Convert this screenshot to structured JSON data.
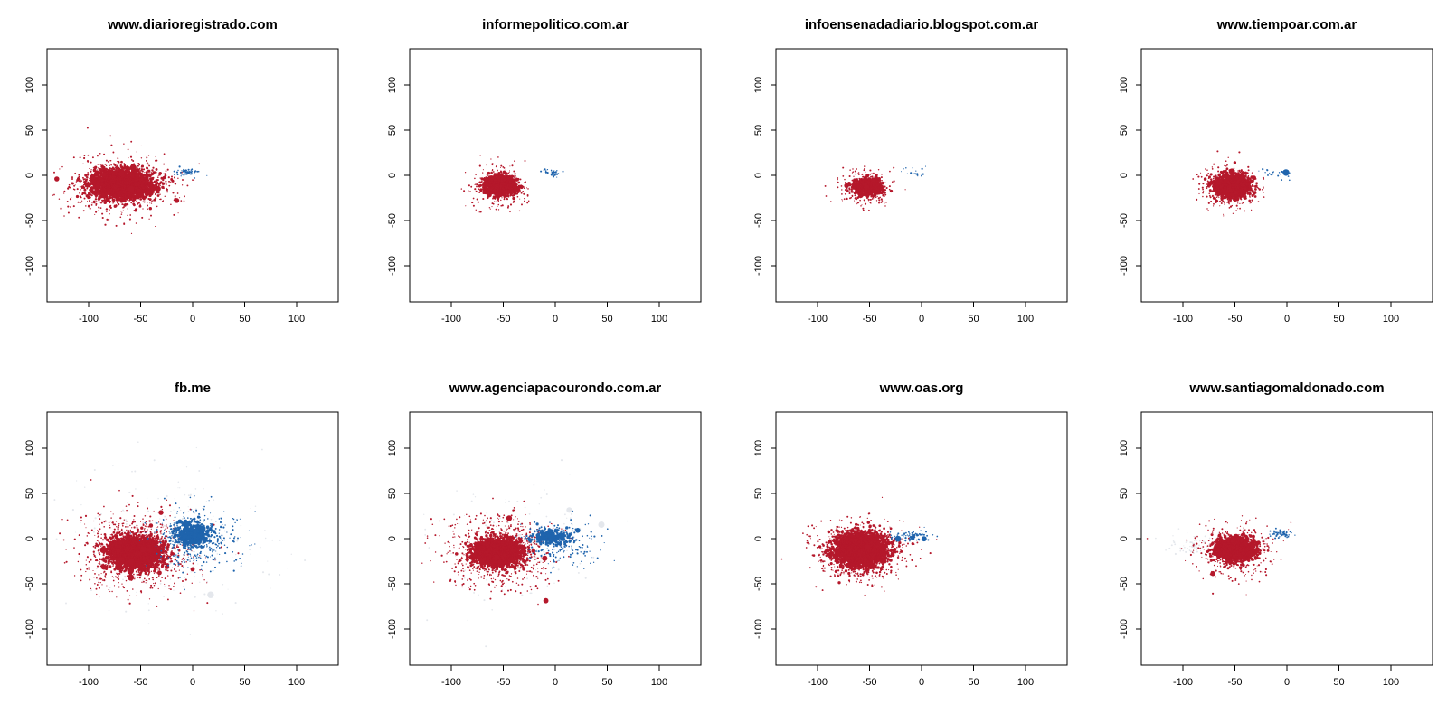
{
  "colors": {
    "red": "#b5182b",
    "blue": "#1f64ad",
    "light_gray": "#e4e7ec",
    "axis": "#000000"
  },
  "chart_data": [
    {
      "type": "scatter",
      "title": "www.diarioregistrado.com",
      "xlim": [
        -140,
        140
      ],
      "ylim": [
        -140,
        140
      ],
      "xticks": [
        -100,
        -50,
        0,
        50,
        100
      ],
      "yticks": [
        -100,
        -50,
        0,
        50,
        100
      ],
      "grid": false,
      "series": [
        {
          "color": "red",
          "center": [
            -68,
            -10
          ],
          "spread": [
            14,
            8
          ],
          "count": 2600,
          "core": true
        },
        {
          "color": "red",
          "center": [
            -70,
            -12
          ],
          "spread": [
            26,
            16
          ],
          "count": 700
        },
        {
          "color": "blue",
          "center": [
            -5,
            3
          ],
          "spread": [
            6,
            2
          ],
          "count": 60
        }
      ]
    },
    {
      "type": "scatter",
      "title": "informepolitico.com.ar",
      "xlim": [
        -140,
        140
      ],
      "ylim": [
        -140,
        140
      ],
      "xticks": [
        -100,
        -50,
        0,
        50,
        100
      ],
      "yticks": [
        -100,
        -50,
        0,
        50,
        100
      ],
      "grid": false,
      "series": [
        {
          "color": "red",
          "center": [
            -52,
            -12
          ],
          "spread": [
            7,
            5
          ],
          "count": 1500,
          "core": true
        },
        {
          "color": "red",
          "center": [
            -55,
            -12
          ],
          "spread": [
            14,
            11
          ],
          "count": 300
        },
        {
          "color": "blue",
          "center": [
            -3,
            3
          ],
          "spread": [
            4,
            2
          ],
          "count": 40
        }
      ]
    },
    {
      "type": "scatter",
      "title": "infoensenadadiario.blogspot.com.ar",
      "xlim": [
        -140,
        140
      ],
      "ylim": [
        -140,
        140
      ],
      "xticks": [
        -100,
        -50,
        0,
        50,
        100
      ],
      "yticks": [
        -100,
        -50,
        0,
        50,
        100
      ],
      "grid": false,
      "series": [
        {
          "color": "red",
          "center": [
            -52,
            -12
          ],
          "spread": [
            6,
            4
          ],
          "count": 1200,
          "core": true
        },
        {
          "color": "red",
          "center": [
            -55,
            -14
          ],
          "spread": [
            12,
            10
          ],
          "count": 250
        },
        {
          "color": "blue",
          "center": [
            -7,
            3
          ],
          "spread": [
            6,
            3
          ],
          "count": 20
        }
      ]
    },
    {
      "type": "scatter",
      "title": "www.tiempoar.com.ar",
      "xlim": [
        -140,
        140
      ],
      "ylim": [
        -140,
        140
      ],
      "xticks": [
        -100,
        -50,
        0,
        50,
        100
      ],
      "yticks": [
        -100,
        -50,
        0,
        50,
        100
      ],
      "grid": false,
      "series": [
        {
          "color": "red",
          "center": [
            -52,
            -12
          ],
          "spread": [
            8,
            6
          ],
          "count": 1500,
          "core": true
        },
        {
          "color": "red",
          "center": [
            -55,
            -14
          ],
          "spread": [
            14,
            12
          ],
          "count": 350
        },
        {
          "color": "blue",
          "center": [
            -12,
            2
          ],
          "spread": [
            8,
            3
          ],
          "count": 25
        }
      ]
    },
    {
      "type": "scatter",
      "title": "fb.me",
      "xlim": [
        -140,
        140
      ],
      "ylim": [
        -140,
        140
      ],
      "xticks": [
        -100,
        -50,
        0,
        50,
        100
      ],
      "yticks": [
        -100,
        -50,
        0,
        50,
        100
      ],
      "grid": false,
      "series": [
        {
          "color": "light_gray",
          "center": [
            -30,
            0
          ],
          "spread": [
            55,
            40
          ],
          "count": 200
        },
        {
          "color": "red",
          "center": [
            -55,
            -15
          ],
          "spread": [
            12,
            8
          ],
          "count": 2800,
          "core": true
        },
        {
          "color": "red",
          "center": [
            -55,
            -15
          ],
          "spread": [
            26,
            22
          ],
          "count": 900
        },
        {
          "color": "blue",
          "center": [
            0,
            5
          ],
          "spread": [
            8,
            6
          ],
          "count": 500,
          "core": true
        },
        {
          "color": "blue",
          "center": [
            5,
            0
          ],
          "spread": [
            22,
            16
          ],
          "count": 400
        }
      ]
    },
    {
      "type": "scatter",
      "title": "www.agenciapacourondo.com.ar",
      "xlim": [
        -140,
        140
      ],
      "ylim": [
        -140,
        140
      ],
      "xticks": [
        -100,
        -50,
        0,
        50,
        100
      ],
      "yticks": [
        -100,
        -50,
        0,
        50,
        100
      ],
      "grid": false,
      "series": [
        {
          "color": "light_gray",
          "center": [
            -35,
            -5
          ],
          "spread": [
            45,
            35
          ],
          "count": 120
        },
        {
          "color": "red",
          "center": [
            -55,
            -15
          ],
          "spread": [
            11,
            7
          ],
          "count": 2500,
          "core": true
        },
        {
          "color": "red",
          "center": [
            -55,
            -15
          ],
          "spread": [
            24,
            20
          ],
          "count": 800
        },
        {
          "color": "blue",
          "center": [
            -5,
            2
          ],
          "spread": [
            9,
            4
          ],
          "count": 260,
          "core": true
        },
        {
          "color": "blue",
          "center": [
            5,
            -5
          ],
          "spread": [
            18,
            12
          ],
          "count": 200
        }
      ]
    },
    {
      "type": "scatter",
      "title": "www.oas.org",
      "xlim": [
        -140,
        140
      ],
      "ylim": [
        -140,
        140
      ],
      "xticks": [
        -100,
        -50,
        0,
        50,
        100
      ],
      "yticks": [
        -100,
        -50,
        0,
        50,
        100
      ],
      "grid": false,
      "series": [
        {
          "color": "red",
          "center": [
            -58,
            -12
          ],
          "spread": [
            12,
            9
          ],
          "count": 3000,
          "core": true
        },
        {
          "color": "red",
          "center": [
            -60,
            -14
          ],
          "spread": [
            22,
            16
          ],
          "count": 700
        },
        {
          "color": "blue",
          "center": [
            -8,
            3
          ],
          "spread": [
            10,
            3
          ],
          "count": 80
        }
      ]
    },
    {
      "type": "scatter",
      "title": "www.santiagomaldonado.com",
      "xlim": [
        -140,
        140
      ],
      "ylim": [
        -140,
        140
      ],
      "xticks": [
        -100,
        -50,
        0,
        50,
        100
      ],
      "yticks": [
        -100,
        -50,
        0,
        50,
        100
      ],
      "grid": false,
      "series": [
        {
          "color": "light_gray",
          "center": [
            -85,
            -8
          ],
          "spread": [
            15,
            7
          ],
          "count": 80
        },
        {
          "color": "red",
          "center": [
            -50,
            -12
          ],
          "spread": [
            9,
            6
          ],
          "count": 1800,
          "core": true
        },
        {
          "color": "red",
          "center": [
            -52,
            -14
          ],
          "spread": [
            18,
            14
          ],
          "count": 450
        },
        {
          "color": "blue",
          "center": [
            -5,
            5
          ],
          "spread": [
            5,
            2
          ],
          "count": 60
        }
      ]
    }
  ]
}
